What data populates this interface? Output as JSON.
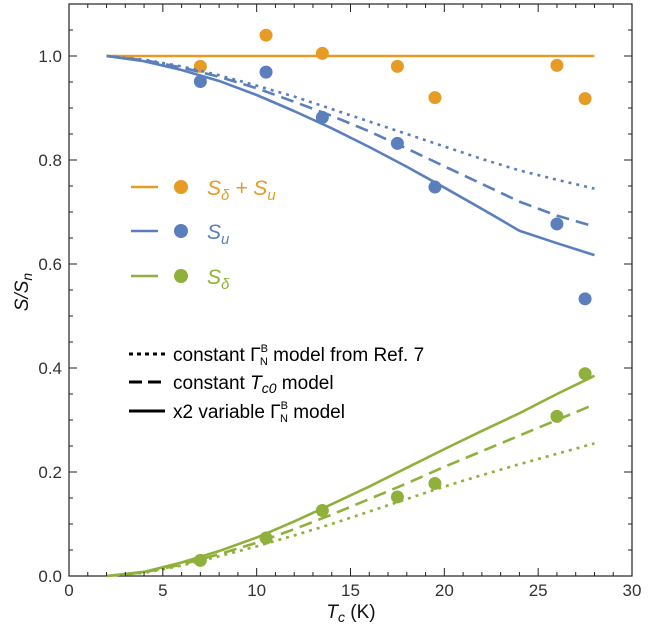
{
  "chart_data": {
    "type": "line",
    "xlabel_var": "T",
    "xlabel_sub": "c",
    "xlabel_unit": " (K)",
    "ylabel_text": "S/S",
    "ylabel_sub": "n",
    "xlim": [
      0,
      30
    ],
    "ylim": [
      0,
      1.1
    ],
    "x_ticks": [
      0,
      5,
      10,
      15,
      20,
      25,
      30
    ],
    "x_tick_labels": [
      "0",
      "5",
      "10",
      "15",
      "20",
      "25",
      "30"
    ],
    "y_ticks": [
      0.0,
      0.2,
      0.4,
      0.6,
      0.8,
      1.0
    ],
    "y_tick_labels": [
      "0.0",
      "0.2",
      "0.4",
      "0.6",
      "0.8",
      "1.0"
    ],
    "grid": false,
    "colors": {
      "orange": "#e69c24",
      "blue": "#5b7fbd",
      "green": "#8fb03a"
    },
    "series": [
      {
        "name": "S_δ + S_u",
        "color": "orange",
        "line_style": "solid",
        "line_x": [
          2,
          28
        ],
        "line_y": [
          1.0,
          1.0
        ],
        "points_x": [
          7.0,
          10.5,
          13.5,
          17.5,
          19.5,
          26.0,
          27.5
        ],
        "points_y": [
          0.98,
          1.04,
          1.005,
          0.98,
          0.92,
          0.982,
          0.918
        ]
      },
      {
        "name": "S_u",
        "color": "blue",
        "points_x": [
          7.0,
          10.5,
          13.5,
          17.5,
          19.5,
          26.0,
          27.5
        ],
        "points_y": [
          0.951,
          0.969,
          0.882,
          0.832,
          0.748,
          0.677,
          0.533
        ],
        "curves": [
          {
            "model": "constant Γ_N model",
            "line_style": "dotted",
            "x": [
              2,
              4,
              6,
              8,
              10,
              12,
              14,
              16,
              18,
              20,
              22,
              24,
              26,
              28
            ],
            "y": [
              1.0,
              0.993,
              0.98,
              0.963,
              0.943,
              0.922,
              0.898,
              0.874,
              0.85,
              0.826,
              0.802,
              0.78,
              0.762,
              0.745
            ]
          },
          {
            "model": "constant Tc0 model",
            "line_style": "dashed",
            "x": [
              2,
              4,
              6,
              8,
              10,
              12,
              14,
              16,
              18,
              20,
              22,
              24,
              26,
              28
            ],
            "y": [
              1.0,
              0.992,
              0.978,
              0.96,
              0.938,
              0.912,
              0.885,
              0.855,
              0.822,
              0.788,
              0.754,
              0.72,
              0.693,
              0.672
            ]
          },
          {
            "model": "x2 variable Γ_N model",
            "line_style": "solid",
            "x": [
              2,
              4,
              6,
              8,
              10,
              12,
              14,
              16,
              18,
              20,
              22,
              24,
              26,
              28
            ],
            "y": [
              1.0,
              0.99,
              0.973,
              0.952,
              0.925,
              0.894,
              0.861,
              0.825,
              0.787,
              0.747,
              0.706,
              0.664,
              0.64,
              0.617
            ]
          }
        ]
      },
      {
        "name": "S_δ",
        "color": "green",
        "points_x": [
          7.0,
          10.5,
          13.5,
          17.5,
          19.5,
          26.0,
          27.5
        ],
        "points_y": [
          0.03,
          0.073,
          0.126,
          0.152,
          0.178,
          0.307,
          0.389
        ],
        "curves": [
          {
            "model": "constant Γ_N model",
            "line_style": "dotted",
            "x": [
              2,
              4,
              6,
              8,
              10,
              12,
              14,
              16,
              18,
              20,
              22,
              24,
              26,
              28
            ],
            "y": [
              0.0,
              0.006,
              0.02,
              0.038,
              0.057,
              0.078,
              0.1,
              0.124,
              0.148,
              0.172,
              0.194,
              0.215,
              0.235,
              0.255
            ]
          },
          {
            "model": "constant Tc0 model",
            "line_style": "dashed",
            "x": [
              2,
              4,
              6,
              8,
              10,
              12,
              14,
              16,
              18,
              20,
              22,
              24,
              26,
              28
            ],
            "y": [
              0.0,
              0.007,
              0.022,
              0.042,
              0.064,
              0.09,
              0.118,
              0.148,
              0.178,
              0.21,
              0.24,
              0.27,
              0.3,
              0.33
            ]
          },
          {
            "model": "x2 variable Γ_N model",
            "line_style": "solid",
            "x": [
              2,
              4,
              6,
              8,
              10,
              12,
              14,
              16,
              18,
              20,
              22,
              24,
              26,
              28
            ],
            "y": [
              0.0,
              0.008,
              0.026,
              0.048,
              0.074,
              0.105,
              0.138,
              0.172,
              0.208,
              0.244,
              0.279,
              0.313,
              0.35,
              0.385
            ]
          }
        ]
      }
    ],
    "legend_series": [
      {
        "main": "S",
        "sub": "δ",
        "extra": " + S",
        "sub2": "u",
        "color": "orange"
      },
      {
        "main": "S",
        "sub": "u",
        "extra": "",
        "sub2": "",
        "color": "blue"
      },
      {
        "main": "S",
        "sub": "δ",
        "extra": "",
        "sub2": "",
        "color": "green"
      }
    ],
    "legend_models": [
      {
        "style": "dotted",
        "pre": "constant Γ",
        "sup": "B",
        "sub": "N",
        "post": " model from Ref. 7"
      },
      {
        "style": "dashed",
        "pre": "constant ",
        "var": "T",
        "vsub": "c0",
        "post": " model"
      },
      {
        "style": "solid",
        "pre": "x2 variable Γ",
        "sup": "B",
        "sub": "N",
        "post": " model"
      }
    ]
  }
}
